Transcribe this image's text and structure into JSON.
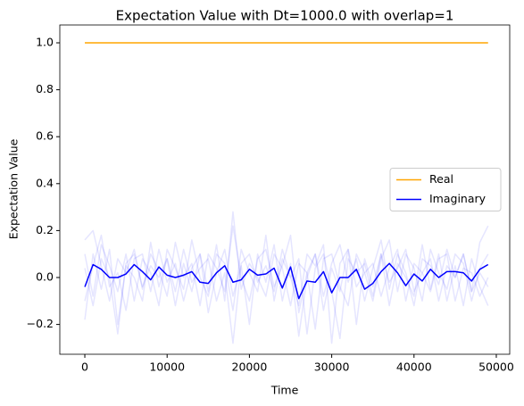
{
  "chart_data": {
    "type": "line",
    "title": "Expectation Value with Dt=1000.0 with overlap=1",
    "xlabel": "Time",
    "ylabel": "Expectation Value",
    "x": [
      0,
      1000,
      2000,
      3000,
      4000,
      5000,
      6000,
      7000,
      8000,
      9000,
      10000,
      11000,
      12000,
      13000,
      14000,
      15000,
      16000,
      17000,
      18000,
      19000,
      20000,
      21000,
      22000,
      23000,
      24000,
      25000,
      26000,
      27000,
      28000,
      29000,
      30000,
      31000,
      32000,
      33000,
      34000,
      35000,
      36000,
      37000,
      38000,
      39000,
      40000,
      41000,
      42000,
      43000,
      44000,
      45000,
      46000,
      47000,
      48000,
      49000
    ],
    "series": [
      {
        "color": "#0000ff",
        "alpha": 0.1,
        "values": [
          0.16,
          0.2,
          0.05,
          -0.1,
          0.08,
          0.02,
          0.12,
          -0.05,
          0.1,
          0.03,
          -0.08,
          0.15,
          0.0,
          0.06,
          -0.12,
          0.1,
          0.04,
          -0.06,
          0.22,
          0.0,
          -0.1,
          0.08,
          0.12,
          -0.04,
          0.05,
          0.18,
          -0.15,
          0.02,
          0.1,
          -0.08,
          0.06,
          0.14,
          -0.02,
          0.08,
          -0.1,
          0.04,
          0.16,
          -0.05,
          0.1,
          0.02,
          -0.12,
          0.08,
          0.05,
          -0.03,
          0.12,
          0.0,
          0.1,
          -0.06,
          0.15,
          0.22
        ]
      },
      {
        "color": "#0000ff",
        "alpha": 0.1,
        "values": [
          -0.18,
          0.1,
          -0.05,
          0.12,
          -0.2,
          0.05,
          0.0,
          -0.1,
          0.15,
          -0.04,
          0.08,
          -0.12,
          0.06,
          -0.06,
          0.1,
          -0.15,
          0.02,
          0.12,
          -0.08,
          0.05,
          -0.2,
          0.1,
          -0.02,
          0.14,
          -0.1,
          0.06,
          -0.25,
          0.0,
          0.1,
          -0.14,
          0.04,
          -0.06,
          0.12,
          -0.2,
          0.08,
          -0.04,
          0.1,
          -0.12,
          0.06,
          0.0,
          -0.08,
          0.14,
          -0.05,
          0.1,
          -0.1,
          0.05,
          -0.12,
          0.08,
          -0.04,
          -0.12
        ]
      },
      {
        "color": "#0000ff",
        "alpha": 0.1,
        "values": [
          0.1,
          -0.08,
          0.14,
          0.05,
          -0.06,
          0.1,
          -0.1,
          0.08,
          0.02,
          -0.12,
          0.12,
          0.04,
          -0.05,
          0.16,
          0.0,
          -0.08,
          0.1,
          0.06,
          -0.14,
          0.12,
          0.02,
          -0.06,
          0.18,
          -0.1,
          0.08,
          0.0,
          -0.12,
          0.1,
          0.05,
          0.14,
          -0.28,
          0.06,
          0.12,
          -0.04,
          0.02,
          -0.1,
          0.08,
          0.16,
          -0.06,
          0.1,
          0.04,
          -0.1,
          0.12,
          0.02,
          -0.05,
          0.1,
          0.06,
          -0.1,
          0.04,
          0.1
        ]
      },
      {
        "color": "#0000ff",
        "alpha": 0.1,
        "values": [
          -0.1,
          0.05,
          0.18,
          -0.04,
          0.02,
          -0.14,
          0.08,
          0.1,
          -0.06,
          0.12,
          -0.02,
          0.06,
          -0.1,
          0.04,
          0.1,
          -0.06,
          0.14,
          -0.1,
          0.28,
          -0.05,
          0.06,
          0.0,
          -0.08,
          0.1,
          0.04,
          -0.12,
          0.06,
          0.02,
          -0.22,
          0.08,
          0.1,
          -0.04,
          -0.12,
          0.1,
          0.02,
          0.06,
          -0.08,
          0.04,
          0.12,
          -0.1,
          0.06,
          0.02,
          -0.06,
          0.08,
          0.1,
          -0.1,
          0.04,
          0.02,
          -0.08,
          0.0
        ]
      },
      {
        "color": "#0000ff",
        "alpha": 0.1,
        "values": [
          0.04,
          -0.12,
          0.08,
          0.0,
          -0.24,
          0.06,
          0.1,
          -0.04,
          0.05,
          0.0,
          0.08,
          -0.06,
          0.12,
          -0.02,
          0.04,
          0.08,
          -0.1,
          0.02,
          -0.28,
          0.06,
          0.1,
          -0.02,
          0.05,
          -0.06,
          0.12,
          0.0,
          0.08,
          -0.24,
          0.04,
          0.1,
          -0.06,
          -0.26,
          0.08,
          0.02,
          0.06,
          -0.08,
          0.1,
          -0.02,
          0.04,
          0.12,
          -0.06,
          0.02,
          0.08,
          -0.1,
          0.05,
          0.0,
          0.1,
          -0.06,
          0.02,
          -0.04
        ]
      },
      {
        "name": "Real",
        "color": "#ffa500",
        "values": [
          1,
          1,
          1,
          1,
          1,
          1,
          1,
          1,
          1,
          1,
          1,
          1,
          1,
          1,
          1,
          1,
          1,
          1,
          1,
          1,
          1,
          1,
          1,
          1,
          1,
          1,
          1,
          1,
          1,
          1,
          1,
          1,
          1,
          1,
          1,
          1,
          1,
          1,
          1,
          1,
          1,
          1,
          1,
          1,
          1,
          1,
          1,
          1,
          1,
          1
        ]
      },
      {
        "name": "Imaginary",
        "color": "#0000ff",
        "values": [
          -0.04,
          0.055,
          0.035,
          0.0,
          0.0,
          0.015,
          0.055,
          0.025,
          -0.01,
          0.045,
          0.01,
          0.0,
          0.01,
          0.025,
          -0.02,
          -0.025,
          0.02,
          0.05,
          -0.02,
          -0.01,
          0.035,
          0.01,
          0.015,
          0.04,
          -0.045,
          0.045,
          -0.09,
          -0.015,
          -0.02,
          0.025,
          -0.065,
          0.0,
          0.0,
          0.035,
          -0.05,
          -0.025,
          0.025,
          0.06,
          0.02,
          -0.035,
          0.015,
          -0.015,
          0.035,
          0.0,
          0.025,
          0.025,
          0.02,
          -0.015,
          0.035,
          0.055
        ]
      }
    ],
    "xlim": [
      -3040,
      51630
    ],
    "xticks": [
      0,
      10000,
      20000,
      30000,
      40000,
      50000
    ],
    "ylim": [
      -0.327,
      1.076
    ],
    "yticks": [
      {
        "value": -0.2,
        "label": "−0.2"
      },
      {
        "value": 0,
        "label": "0.0"
      },
      {
        "value": 0.2,
        "label": "0.2"
      },
      {
        "value": 0.4,
        "label": "0.4"
      },
      {
        "value": 0.6,
        "label": "0.6"
      },
      {
        "value": 0.8,
        "label": "0.8"
      },
      {
        "value": 1.0,
        "label": "1.0"
      }
    ],
    "legend": "center right",
    "grid": false
  }
}
